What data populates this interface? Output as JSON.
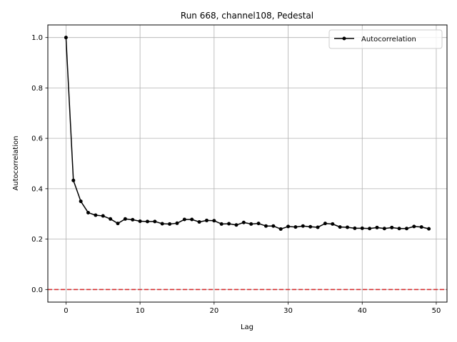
{
  "chart_data": {
    "type": "line",
    "title": "Run 668, channel108, Pedestal",
    "xlabel": "Lag",
    "ylabel": "Autocorrelation",
    "xlim": [
      -2.45,
      51.45
    ],
    "ylim": [
      -0.05,
      1.05
    ],
    "xticks": [
      0,
      10,
      20,
      30,
      40,
      50
    ],
    "yticks": [
      0.0,
      0.2,
      0.4,
      0.6,
      0.8,
      1.0
    ],
    "xtick_labels": [
      "0",
      "10",
      "20",
      "30",
      "40",
      "50"
    ],
    "ytick_labels": [
      "0.0",
      "0.2",
      "0.4",
      "0.6",
      "0.8",
      "1.0"
    ],
    "grid": true,
    "legend_position": "top-right",
    "reference_line": {
      "y": 0.0,
      "color": "#d62728",
      "style": "dashed"
    },
    "series": [
      {
        "name": "Autocorrelation",
        "color": "#000000",
        "marker": "circle",
        "x": [
          0,
          1,
          2,
          3,
          4,
          5,
          6,
          7,
          8,
          9,
          10,
          11,
          12,
          13,
          14,
          15,
          16,
          17,
          18,
          19,
          20,
          21,
          22,
          23,
          24,
          25,
          26,
          27,
          28,
          29,
          30,
          31,
          32,
          33,
          34,
          35,
          36,
          37,
          38,
          39,
          40,
          41,
          42,
          43,
          44,
          45,
          46,
          47,
          48,
          49
        ],
        "values": [
          1.0,
          0.433,
          0.35,
          0.305,
          0.295,
          0.292,
          0.28,
          0.262,
          0.28,
          0.277,
          0.271,
          0.27,
          0.27,
          0.261,
          0.26,
          0.263,
          0.278,
          0.278,
          0.268,
          0.274,
          0.273,
          0.26,
          0.261,
          0.256,
          0.266,
          0.26,
          0.262,
          0.252,
          0.252,
          0.24,
          0.25,
          0.248,
          0.252,
          0.249,
          0.247,
          0.262,
          0.26,
          0.248,
          0.247,
          0.243,
          0.243,
          0.242,
          0.246,
          0.242,
          0.246,
          0.242,
          0.242,
          0.25,
          0.248,
          0.241
        ]
      }
    ]
  }
}
